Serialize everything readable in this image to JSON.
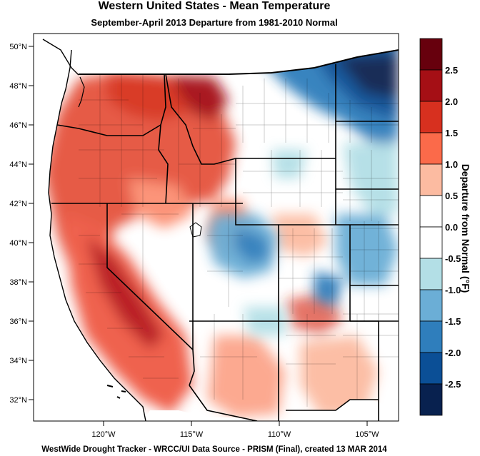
{
  "title": "Western United States - Mean Temperature",
  "subtitle": "September-April 2013  Departure from 1981-2010 Normal",
  "footer": "WestWide Drought Tracker - WRCC/UI  Data Source - PRISM (Final), created 13 MAR 2014",
  "map": {
    "lat_labels": [
      "50°N",
      "48°N",
      "46°N",
      "44°N",
      "42°N",
      "40°N",
      "38°N",
      "36°N",
      "34°N",
      "32°N"
    ],
    "lon_labels": [
      "120°W",
      "115°W",
      "110°W",
      "105°W"
    ]
  },
  "colorbar": {
    "title": "Departure from Normal (°F)",
    "tick_labels": [
      "2.5",
      "2.0",
      "1.5",
      "1.0",
      "0.5",
      "0.0",
      "-0.5",
      "-1.0",
      "-1.5",
      "-2.0",
      "-2.5"
    ],
    "colors": [
      "#67000d",
      "#a50f15",
      "#d7301f",
      "#fb6a4a",
      "#fcbba1",
      "#ffffff",
      "#ffffff",
      "#b3dfe6",
      "#6baed6",
      "#2f7ebc",
      "#0b4f96",
      "#08214f"
    ]
  }
}
